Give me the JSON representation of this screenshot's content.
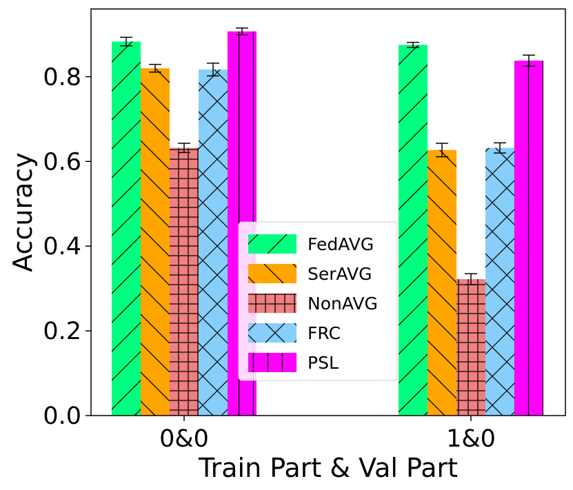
{
  "chart_data": {
    "type": "bar",
    "title": "",
    "xlabel": "Train Part & Val Part",
    "ylabel": "Accuracy",
    "categories": [
      "0&0",
      "1&0"
    ],
    "ylim": [
      0,
      0.96
    ],
    "yticks": [
      "0.0",
      "0.2",
      "0.4",
      "0.6",
      "0.8"
    ],
    "grid": false,
    "legend_position": "center",
    "series": [
      {
        "name": "FedAVG",
        "color": "#00ff7f",
        "hatch": "diag-up",
        "values": [
          0.883,
          0.875
        ],
        "errors": [
          0.01,
          0.006
        ]
      },
      {
        "name": "SerAVG",
        "color": "#ffa500",
        "hatch": "diag-down",
        "values": [
          0.82,
          0.627
        ],
        "errors": [
          0.009,
          0.016
        ]
      },
      {
        "name": "NonAVG",
        "color": "#f08080",
        "hatch": "grid",
        "values": [
          0.632,
          0.322
        ],
        "errors": [
          0.011,
          0.013
        ]
      },
      {
        "name": "FRC",
        "color": "#87cefa",
        "hatch": "cross",
        "values": [
          0.817,
          0.632
        ],
        "errors": [
          0.015,
          0.012
        ]
      },
      {
        "name": "PSL",
        "color": "#ff00ff",
        "hatch": "vertical",
        "values": [
          0.907,
          0.838
        ],
        "errors": [
          0.008,
          0.013
        ]
      }
    ]
  }
}
